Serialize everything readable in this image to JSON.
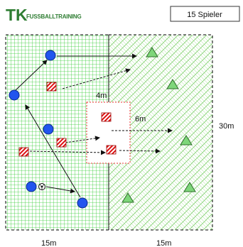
{
  "logo": {
    "mark": "TK",
    "text": "FUSSBALLTRAINING"
  },
  "player_count_label": "15 Spieler",
  "distances": {
    "inner_gap": "4m",
    "zone_gap": "6m",
    "height": "30m",
    "left_width": "15m",
    "right_width": "15m"
  },
  "colors": {
    "logo_green": "#2e7d32",
    "left_grid": "#33cc33",
    "right_hatch": "#7dcf6a",
    "player_blue": "#2255ee",
    "cone_green": "#7ed67a",
    "marker_red": "#dd1111",
    "center_box_border": "#ee3333"
  },
  "legend": {
    "blue_circle": "player",
    "green_triangle": "cone / target",
    "red_white_square": "ball marker"
  }
}
